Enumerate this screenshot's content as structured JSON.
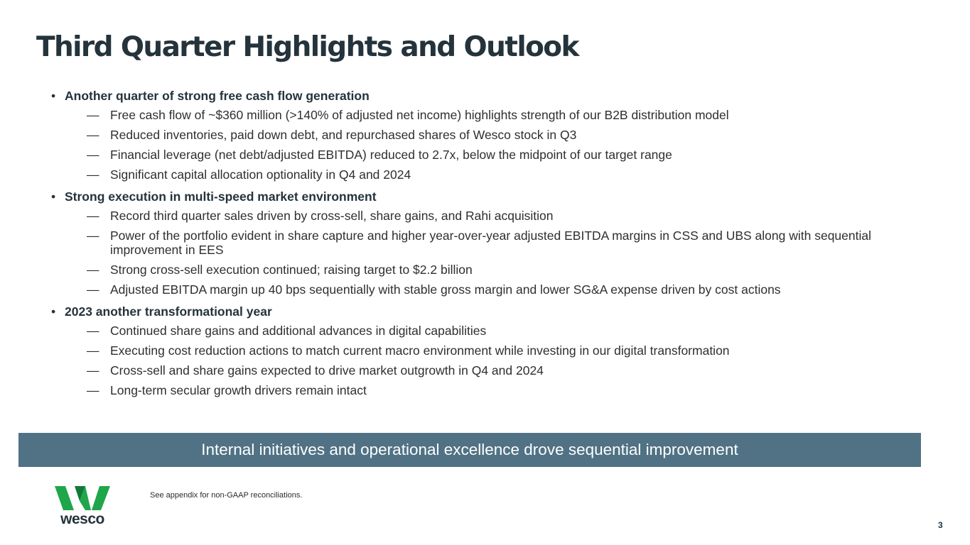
{
  "slide": {
    "title": "Third Quarter Highlights and Outlook",
    "bullet_glyph": "•",
    "dash_glyph": "—",
    "sections": [
      {
        "heading": "Another quarter of strong free cash flow generation",
        "items": [
          "Free cash flow of ~$360 million (>140% of adjusted net income) highlights strength of our B2B distribution model",
          "Reduced inventories, paid down debt, and repurchased shares of Wesco stock in Q3",
          "Financial leverage (net debt/adjusted EBITDA) reduced to 2.7x, below the midpoint of our target range",
          "Significant capital allocation optionality in Q4 and 2024"
        ]
      },
      {
        "heading": "Strong execution in multi-speed market environment",
        "items": [
          "Record third quarter sales driven by cross-sell, share gains, and Rahi acquisition",
          "Power of the portfolio evident in share capture and higher year-over-year adjusted EBITDA margins in CSS and UBS along with sequential improvement in EES",
          "Strong cross-sell execution continued; raising target to $2.2 billion",
          "Adjusted EBITDA margin up 40 bps sequentially with stable gross margin and lower SG&A expense driven by cost actions"
        ]
      },
      {
        "heading": "2023 another transformational year",
        "items": [
          "Continued share gains and additional advances in digital capabilities",
          "Executing cost reduction actions to match current macro environment while investing in our digital transformation",
          "Cross-sell and share gains expected to drive market outgrowth in Q4 and 2024",
          "Long-term secular growth drivers remain intact"
        ]
      }
    ],
    "banner": "Internal initiatives and operational excellence drove sequential improvement",
    "footnote": "See appendix for non-GAAP reconciliations.",
    "logo_text": "wesco",
    "page_number": "3"
  },
  "colors": {
    "title": "#24333c",
    "banner_bg": "#507284",
    "logo_green": "#1fa64a"
  },
  "icons": {
    "logo": "wesco-w-logo-icon"
  }
}
